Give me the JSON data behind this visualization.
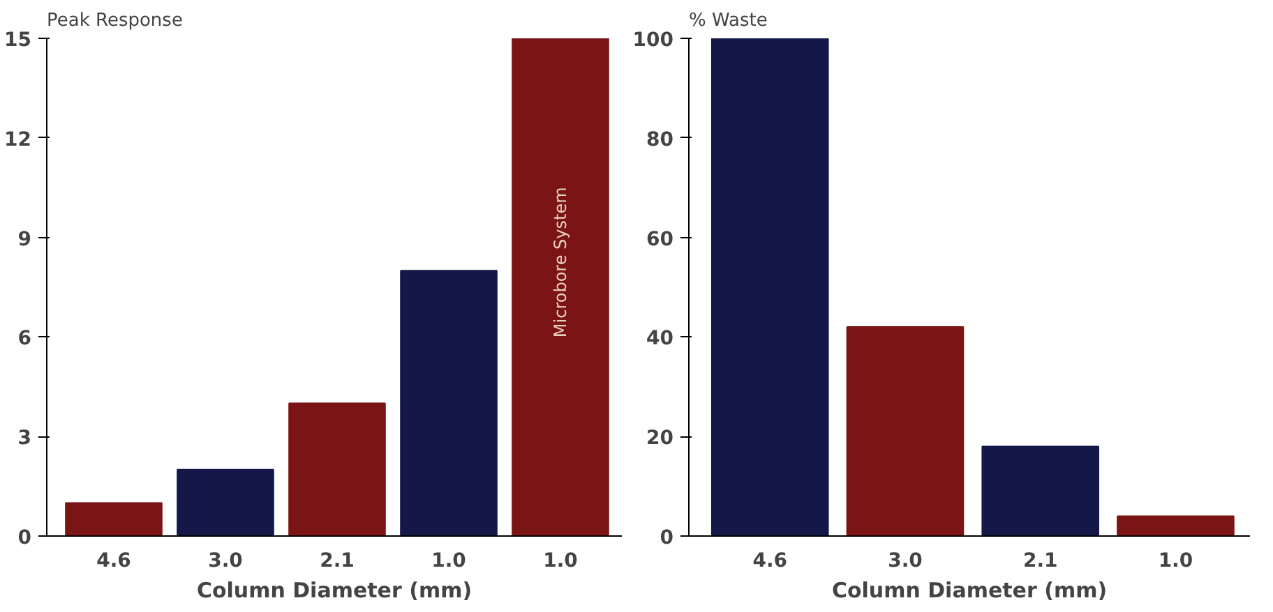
{
  "chart_data": [
    {
      "type": "bar",
      "title": "Peak Response",
      "xlabel": "Column Diameter (mm)",
      "categories": [
        "4.6",
        "3.0",
        "2.1",
        "1.0",
        "1.0"
      ],
      "values": [
        1,
        2,
        4,
        8,
        15
      ],
      "colors": [
        "#7b1515",
        "#141848",
        "#7b1515",
        "#141848",
        "#7b1515"
      ],
      "ylim": [
        0,
        15
      ],
      "yticks": [
        0,
        3,
        6,
        9,
        12,
        15
      ],
      "annotations": [
        "Microbore System"
      ]
    },
    {
      "type": "bar",
      "title": "% Waste",
      "xlabel": "Column Diameter (mm)",
      "categories": [
        "4.6",
        "3.0",
        "2.1",
        "1.0"
      ],
      "values": [
        100,
        42,
        18,
        4
      ],
      "colors": [
        "#141848",
        "#7b1515",
        "#141848",
        "#7b1515"
      ],
      "ylim": [
        0,
        100
      ],
      "yticks": [
        0,
        20,
        40,
        60,
        80,
        100
      ]
    }
  ]
}
